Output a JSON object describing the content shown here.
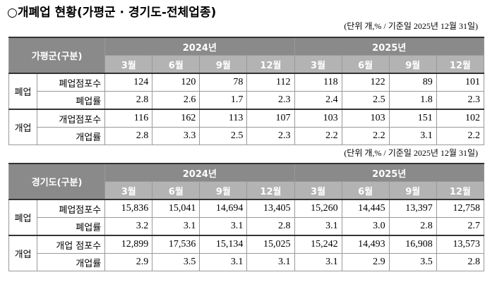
{
  "title": "○개폐업 현황(가평군 · 경기도-전체업종)",
  "tables": [
    {
      "note": "(단위 개,% / 기준일 2025년 12월 31일)",
      "corner": "가평군(구분)",
      "years": [
        "2024년",
        "2025년"
      ],
      "months": [
        "3월",
        "6월",
        "9월",
        "12월",
        "3월",
        "6월",
        "9월",
        "12월"
      ],
      "groups": [
        {
          "name": "폐업",
          "rows": [
            {
              "label": "폐업점포수",
              "cells": [
                "124",
                "120",
                "78",
                "112",
                "118",
                "122",
                "89",
                "101"
              ]
            },
            {
              "label": "폐업률",
              "cells": [
                "2.8",
                "2.6",
                "1.7",
                "2.3",
                "2.4",
                "2.5",
                "1.8",
                "2.3"
              ]
            }
          ]
        },
        {
          "name": "개업",
          "rows": [
            {
              "label": "개업점포수",
              "cells": [
                "116",
                "162",
                "113",
                "107",
                "103",
                "103",
                "151",
                "102"
              ]
            },
            {
              "label": "개업률",
              "cells": [
                "2.8",
                "3.3",
                "2.5",
                "2.3",
                "2.2",
                "2.2",
                "3.1",
                "2.2"
              ]
            }
          ]
        }
      ]
    },
    {
      "note": "(단위 개,% / 기준일 2025년 12월 31일)",
      "corner": "경기도(구분)",
      "years": [
        "2024년",
        "2025년"
      ],
      "months": [
        "3월",
        "6월",
        "9월",
        "12월",
        "3월",
        "6월",
        "9월",
        "12월"
      ],
      "groups": [
        {
          "name": "폐업",
          "rows": [
            {
              "label": "폐업점포수",
              "cells": [
                "15,836",
                "15,041",
                "14,694",
                "13,405",
                "15,260",
                "14,445",
                "13,397",
                "12,758"
              ]
            },
            {
              "label": "폐업률",
              "cells": [
                "3.2",
                "3.1",
                "3.1",
                "2.8",
                "3.1",
                "3.0",
                "2.8",
                "2.7"
              ]
            }
          ]
        },
        {
          "name": "개업",
          "rows": [
            {
              "label": "개업 점포수",
              "cells": [
                "12,899",
                "17,536",
                "15,134",
                "15,025",
                "15,242",
                "14,493",
                "16,908",
                "13,573"
              ]
            },
            {
              "label": "개업률",
              "cells": [
                "2.9",
                "3.5",
                "3.1",
                "3.1",
                "3.1",
                "2.9",
                "3.5",
                "2.8"
              ]
            }
          ]
        }
      ]
    }
  ]
}
